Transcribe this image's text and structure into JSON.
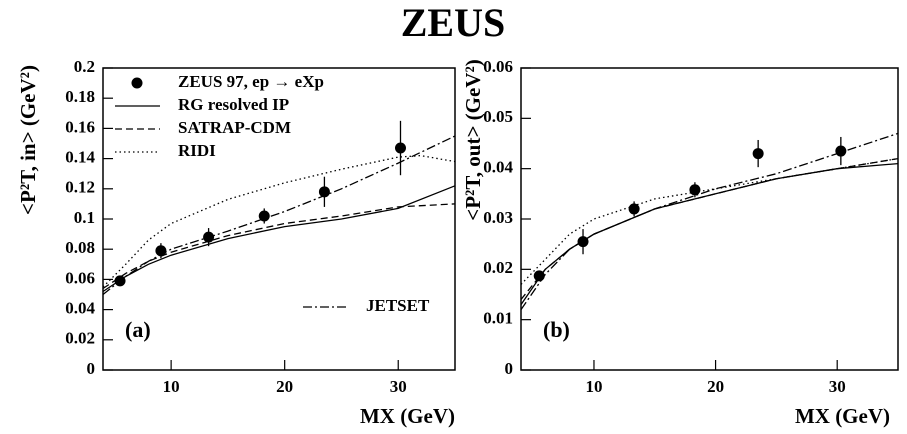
{
  "title": "ZEUS",
  "chart_data": [
    {
      "type": "line",
      "panel_label": "(a)",
      "xlabel": "MX (GeV)",
      "ylabel": "<P²T, in> (GeV²)",
      "xlim": [
        4,
        35
      ],
      "xticks": [
        10,
        20,
        30
      ],
      "ylim": [
        0,
        0.2
      ],
      "yticks": [
        0,
        0.02,
        0.04,
        0.06,
        0.08,
        0.1,
        0.12,
        0.14,
        0.16,
        0.18,
        0.2
      ],
      "series": [
        {
          "name": "ZEUS 97, ep → eXp",
          "color": "#000000",
          "marker": "circle",
          "x": [
            5.5,
            9.1,
            13.3,
            18.2,
            23.5,
            30.2
          ],
          "values": [
            0.059,
            0.079,
            0.088,
            0.102,
            0.118,
            0.147
          ],
          "errors": [
            0.003,
            0.005,
            0.006,
            0.005,
            0.01,
            0.018
          ]
        },
        {
          "name": "RG resolved IP",
          "color": "#000000",
          "style": "solid",
          "x": [
            4,
            6,
            8,
            10,
            15,
            20,
            25,
            30,
            35
          ],
          "values": [
            0.052,
            0.062,
            0.07,
            0.076,
            0.087,
            0.095,
            0.1,
            0.107,
            0.122
          ]
        },
        {
          "name": "SATRAP-CDM",
          "color": "#000000",
          "style": "dashed",
          "x": [
            4,
            6,
            8,
            10,
            15,
            20,
            25,
            30,
            35
          ],
          "values": [
            0.054,
            0.064,
            0.072,
            0.078,
            0.089,
            0.097,
            0.102,
            0.108,
            0.11
          ]
        },
        {
          "name": "RIDI",
          "color": "#000000",
          "style": "dotted",
          "x": [
            4,
            6,
            8,
            10,
            15,
            20,
            25,
            30,
            32,
            35
          ],
          "values": [
            0.055,
            0.07,
            0.086,
            0.097,
            0.113,
            0.124,
            0.133,
            0.141,
            0.142,
            0.138
          ]
        },
        {
          "name": "JETSET",
          "color": "#000000",
          "style": "dashdot",
          "x": [
            4,
            6,
            8,
            10,
            15,
            20,
            25,
            30,
            35
          ],
          "values": [
            0.05,
            0.062,
            0.072,
            0.08,
            0.092,
            0.105,
            0.12,
            0.137,
            0.155
          ]
        }
      ]
    },
    {
      "type": "line",
      "panel_label": "(b)",
      "xlabel": "MX (GeV)",
      "ylabel": "<P²T, out> (GeV²)",
      "xlim": [
        4,
        35
      ],
      "xticks": [
        10,
        20,
        30
      ],
      "ylim": [
        0,
        0.06
      ],
      "yticks": [
        0,
        0.01,
        0.02,
        0.03,
        0.04,
        0.05,
        0.06
      ],
      "series": [
        {
          "color": "#000000",
          "marker": "circle",
          "x": [
            5.5,
            9.1,
            13.3,
            18.3,
            23.5,
            30.3
          ],
          "values": [
            0.0187,
            0.0255,
            0.032,
            0.0358,
            0.043,
            0.0435
          ],
          "errors": [
            0.0008,
            0.0025,
            0.0015,
            0.0015,
            0.0027,
            0.0028
          ]
        },
        {
          "color": "#000000",
          "style": "solid",
          "x": [
            4,
            6,
            8,
            10,
            15,
            20,
            25,
            30,
            35
          ],
          "values": [
            0.013,
            0.02,
            0.024,
            0.027,
            0.032,
            0.035,
            0.038,
            0.04,
            0.041
          ]
        },
        {
          "color": "#000000",
          "style": "dashed",
          "x": [
            4,
            6,
            8,
            10,
            15,
            20,
            25,
            30,
            35
          ],
          "values": [
            0.014,
            0.02,
            0.024,
            0.027,
            0.032,
            0.035,
            0.038,
            0.04,
            0.042
          ]
        },
        {
          "color": "#000000",
          "style": "dotted",
          "x": [
            4,
            6,
            8,
            10,
            15,
            20,
            25,
            30,
            35
          ],
          "values": [
            0.017,
            0.022,
            0.027,
            0.03,
            0.034,
            0.036,
            0.038,
            0.04,
            0.042
          ]
        },
        {
          "color": "#000000",
          "style": "dashdot",
          "x": [
            4,
            6,
            8,
            10,
            15,
            20,
            25,
            30,
            35
          ],
          "values": [
            0.012,
            0.019,
            0.024,
            0.027,
            0.032,
            0.036,
            0.039,
            0.043,
            0.047
          ]
        }
      ]
    }
  ]
}
